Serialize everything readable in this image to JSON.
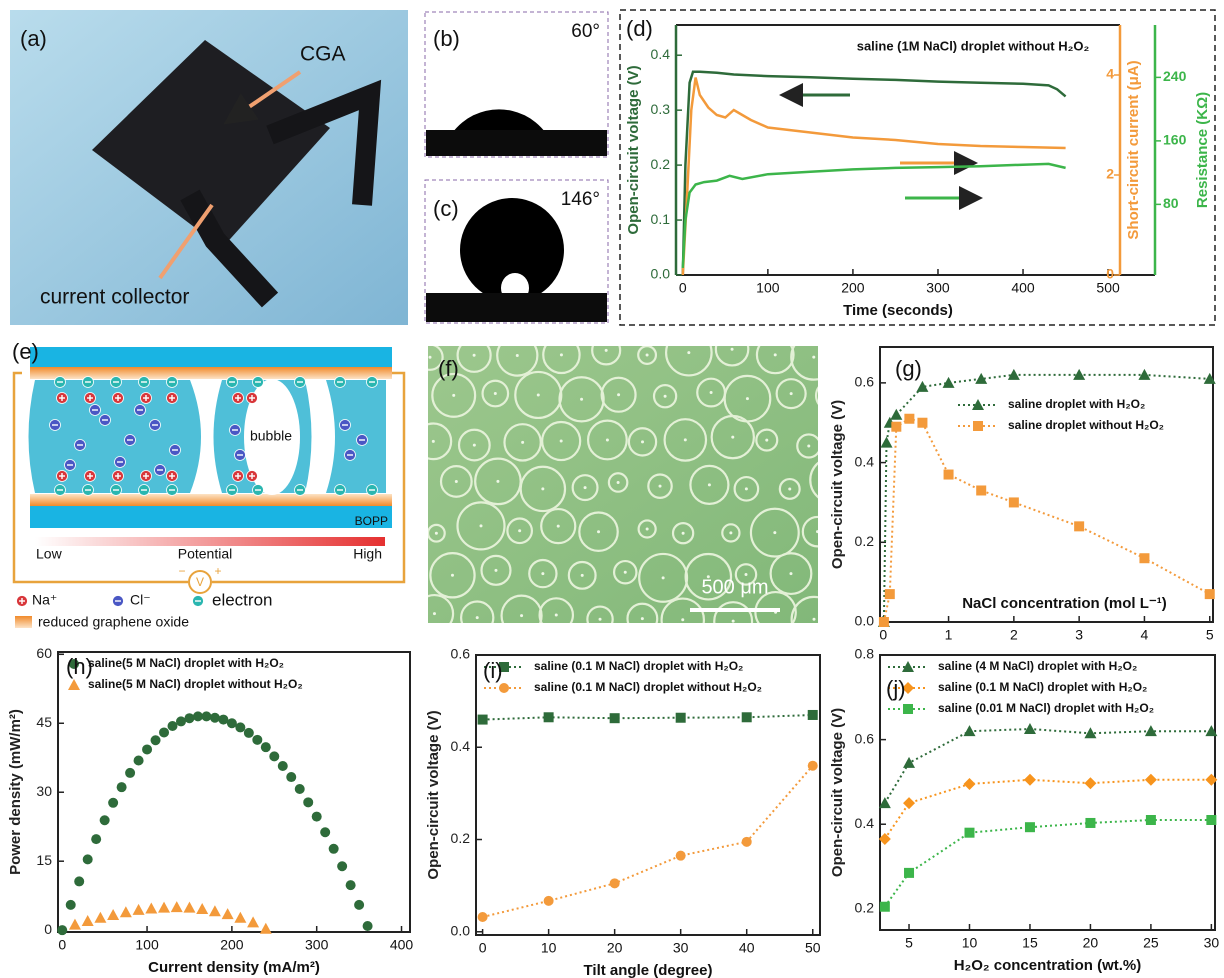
{
  "panels": {
    "a": {
      "label": "(a)",
      "texts": [
        "CGA",
        "current collector"
      ]
    },
    "b": {
      "label": "(b)",
      "angle": "60°"
    },
    "c": {
      "label": "(c)",
      "angle": "146°"
    },
    "e": {
      "label": "(e)",
      "bubble": "bubble",
      "substrate": "BOPP",
      "low": "Low",
      "potential": "Potential",
      "high": "High",
      "meter": "V",
      "meter_minus": "−",
      "meter_plus": "+",
      "legend": [
        "Na⁺",
        "Cl⁻",
        "electron",
        "reduced graphene oxide"
      ]
    },
    "f": {
      "label": "(f)",
      "scale_bar": "500 μm"
    }
  },
  "chart_data": [
    {
      "label": "(d)",
      "type": "line",
      "annotation": "saline (1M NaCl) droplet without H₂O₂",
      "xlabel": "Time (seconds)",
      "ylabel": "Open-circuit voltage (V)",
      "y2label": "Short-circuit current (μA)",
      "y3label": "Resistance (KΩ)",
      "xlim": [
        -8,
        514
      ],
      "xticks": [
        0,
        100,
        200,
        300,
        400,
        500
      ],
      "ylim": [
        0,
        0.455
      ],
      "yticks": [
        {
          "value": 0,
          "label": "0.0"
        },
        0.1,
        0.2,
        0.3,
        0.4
      ],
      "y2lim": [
        0,
        5
      ],
      "y2ticks": [
        0,
        2,
        4
      ],
      "y3lim": [
        -9,
        306
      ],
      "y3ticks": [
        80,
        160,
        240
      ],
      "linestyle": "solid",
      "series": [
        {
          "color": "#2e6b3a",
          "axis": "y",
          "x": [
            0,
            3,
            8,
            12,
            20,
            40,
            60,
            100,
            150,
            200,
            250,
            300,
            350,
            400,
            430,
            440,
            450
          ],
          "values": [
            0,
            0.2,
            0.35,
            0.37,
            0.37,
            0.368,
            0.365,
            0.362,
            0.36,
            0.357,
            0.355,
            0.352,
            0.35,
            0.348,
            0.345,
            0.338,
            0.325
          ]
        },
        {
          "color": "#f39a3b",
          "axis": "y2",
          "x": [
            0,
            5,
            10,
            15,
            20,
            30,
            40,
            50,
            60,
            70,
            80,
            100,
            150,
            200,
            250,
            300,
            350,
            400,
            450
          ],
          "values": [
            0,
            1.6,
            3.3,
            3.95,
            3.6,
            3.35,
            3.2,
            3.15,
            3.3,
            3.2,
            3.1,
            2.95,
            2.85,
            2.75,
            2.7,
            2.62,
            2.58,
            2.56,
            2.54
          ]
        },
        {
          "color": "#3cb54a",
          "axis": "y3",
          "x": [
            0,
            3,
            8,
            15,
            25,
            40,
            55,
            70,
            100,
            150,
            200,
            250,
            300,
            350,
            400,
            430,
            450
          ],
          "values": [
            0,
            60,
            95,
            105,
            108,
            110,
            116,
            112,
            118,
            121,
            124,
            126,
            127,
            128,
            130,
            131,
            126
          ]
        }
      ]
    },
    {
      "label": "(g)",
      "type": "line",
      "xlabel": "NaCl concentration (mol L⁻¹)",
      "ylabel": "Open-circuit voltage (V)",
      "xlim": [
        -0.05,
        5.05
      ],
      "xticks": [
        0,
        1,
        2,
        3,
        4,
        5
      ],
      "ylim": [
        0,
        0.69
      ],
      "yticks": [
        {
          "value": 0,
          "label": "0.0"
        },
        0.2,
        0.4,
        0.6
      ],
      "linestyle": "dotted",
      "legend": "upper right",
      "series": [
        {
          "name": "saline droplet with H₂O₂",
          "color": "#2e6b3a",
          "marker": "triangle",
          "x": [
            0.01,
            0.05,
            0.1,
            0.2,
            0.6,
            1,
            1.5,
            2,
            3,
            4,
            5
          ],
          "values": [
            0,
            0.45,
            0.5,
            0.52,
            0.59,
            0.6,
            0.61,
            0.62,
            0.62,
            0.62,
            0.61
          ]
        },
        {
          "name": "saline droplet without H₂O₂",
          "color": "#f39a3b",
          "marker": "square",
          "x": [
            0.01,
            0.1,
            0.2,
            0.4,
            0.6,
            1,
            1.5,
            2,
            3,
            4,
            5
          ],
          "values": [
            0,
            0.07,
            0.49,
            0.51,
            0.5,
            0.37,
            0.33,
            0.3,
            0.24,
            0.16,
            0.07
          ]
        }
      ]
    },
    {
      "label": "(h)",
      "type": "scatter",
      "xlabel": "Current density (mA/m²)",
      "ylabel": "Power density (mW/m²)",
      "xlim": [
        -5,
        410
      ],
      "xticks": [
        0,
        100,
        200,
        300,
        400
      ],
      "ylim": [
        -0.4,
        60.5
      ],
      "yticks": [
        0,
        15,
        30,
        45,
        60
      ],
      "legend": "upper left",
      "series": [
        {
          "name": "saline(5 M NaCl) droplet with H₂O₂",
          "color": "#2e6b3a",
          "marker": "circle",
          "x": [
            0,
            10,
            20,
            30,
            40,
            50,
            60,
            70,
            80,
            90,
            100,
            110,
            120,
            130,
            140,
            150,
            160,
            170,
            180,
            190,
            200,
            210,
            220,
            230,
            240,
            250,
            260,
            270,
            280,
            290,
            300,
            310,
            320,
            330,
            340,
            350,
            360
          ],
          "values": [
            0,
            5.5,
            10.6,
            15.4,
            19.8,
            23.9,
            27.7,
            31.1,
            34.2,
            36.9,
            39.3,
            41.3,
            43.0,
            44.4,
            45.4,
            46.1,
            46.5,
            46.5,
            46.2,
            45.8,
            45.0,
            44.1,
            42.9,
            41.4,
            39.8,
            37.8,
            35.7,
            33.3,
            30.7,
            27.8,
            24.7,
            21.3,
            17.7,
            13.9,
            9.8,
            5.5,
            0.9
          ]
        },
        {
          "name": "saline(5 M NaCl) droplet without H₂O₂",
          "color": "#f39a3b",
          "marker": "triangle",
          "x": [
            15,
            30,
            45,
            60,
            75,
            90,
            105,
            120,
            135,
            150,
            165,
            180,
            195,
            210,
            225,
            240
          ],
          "values": [
            1.2,
            2.0,
            2.7,
            3.3,
            3.9,
            4.4,
            4.7,
            4.9,
            5.0,
            4.9,
            4.6,
            4.1,
            3.5,
            2.7,
            1.7,
            0.3
          ]
        }
      ]
    },
    {
      "label": "(i)",
      "type": "line",
      "xlabel": "Tilt angle (degree)",
      "ylabel": "Open-circuit voltage (V)",
      "xlim": [
        -1,
        51.1
      ],
      "xticks": [
        0,
        10,
        20,
        30,
        40,
        50
      ],
      "ylim": [
        -0.007,
        0.6
      ],
      "yticks": [
        {
          "value": 0,
          "label": "0.0"
        },
        0.2,
        0.4,
        0.6
      ],
      "linestyle": "dotted",
      "legend": "upper left",
      "series": [
        {
          "name": "saline (0.1 M NaCl) droplet with H₂O₂",
          "color": "#2e6b3a",
          "marker": "square",
          "x": [
            0,
            10,
            20,
            30,
            40,
            50
          ],
          "values": [
            0.46,
            0.465,
            0.463,
            0.464,
            0.465,
            0.47
          ]
        },
        {
          "name": "saline (0.1 M NaCl) droplet without H₂O₂",
          "color": "#f39a3b",
          "marker": "circle",
          "x": [
            0,
            10,
            20,
            30,
            40,
            50
          ],
          "values": [
            0.032,
            0.067,
            0.105,
            0.165,
            0.195,
            0.36
          ]
        }
      ]
    },
    {
      "label": "(j)",
      "type": "line",
      "xlabel": "H₂O₂ concentration (wt.%)",
      "ylabel": "Open-circuit voltage (V)",
      "xlim": [
        2.6,
        30.3
      ],
      "xticks": [
        5,
        10,
        15,
        20,
        25,
        30
      ],
      "ylim": [
        0.15,
        0.8
      ],
      "yticks": [
        0.2,
        0.4,
        0.6,
        0.8
      ],
      "linestyle": "dotted",
      "legend": "upper left",
      "series": [
        {
          "name": "saline (4 M NaCl) droplet with H₂O₂",
          "color": "#2e6b3a",
          "marker": "triangle",
          "x": [
            3,
            5,
            10,
            15,
            20,
            25,
            30
          ],
          "values": [
            0.45,
            0.545,
            0.62,
            0.625,
            0.615,
            0.62,
            0.62
          ]
        },
        {
          "name": "saline (0.1 M NaCl) droplet with H₂O₂",
          "color": "#f7941d",
          "marker": "diamond",
          "x": [
            3,
            5,
            10,
            15,
            20,
            25,
            30
          ],
          "values": [
            0.365,
            0.45,
            0.495,
            0.505,
            0.497,
            0.505,
            0.505
          ]
        },
        {
          "name": "saline (0.01 M NaCl) droplet with H₂O₂",
          "color": "#3cb54a",
          "marker": "square",
          "x": [
            3,
            5,
            10,
            15,
            20,
            25,
            30
          ],
          "values": [
            0.205,
            0.285,
            0.38,
            0.393,
            0.403,
            0.41,
            0.41
          ]
        }
      ]
    }
  ]
}
